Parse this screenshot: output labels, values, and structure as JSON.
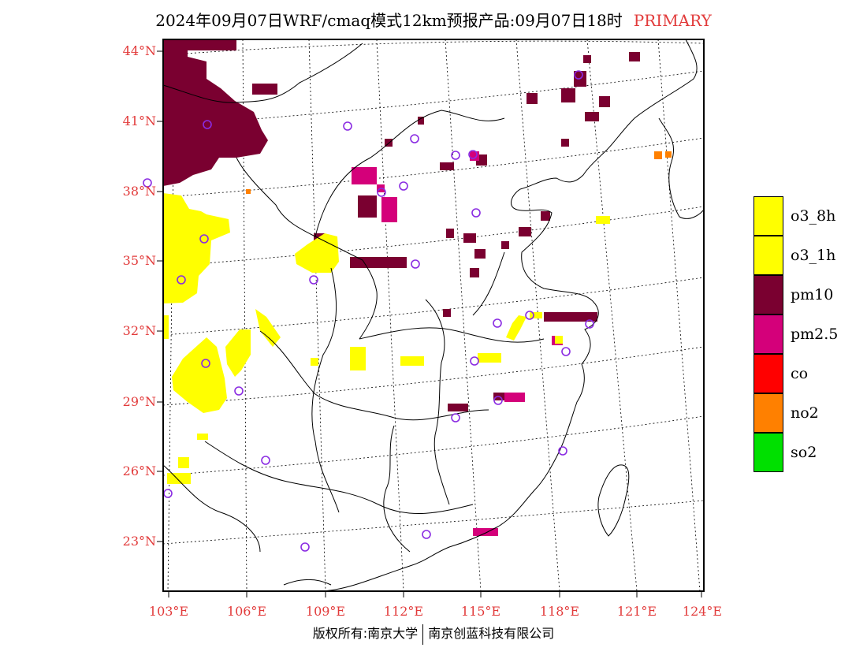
{
  "title": "2024年09月07日WRF/cmaq模式12km预报产品:09月07日18时",
  "title_tag": "PRIMARY",
  "lat_labels": [
    "44°N",
    "41°N",
    "38°N",
    "35°N",
    "32°N",
    "29°N",
    "26°N",
    "23°N"
  ],
  "lon_labels": [
    "103°E",
    "106°E",
    "109°E",
    "112°E",
    "115°E",
    "118°E",
    "121°E",
    "124°E"
  ],
  "legend": [
    {
      "label": "o3_8h",
      "color": "#ffff00"
    },
    {
      "label": "o3_1h",
      "color": "#ffff00"
    },
    {
      "label": "pm10",
      "color": "#7a0030"
    },
    {
      "label": "pm2.5",
      "color": "#d4007a"
    },
    {
      "label": "co",
      "color": "#ff0000"
    },
    {
      "label": "no2",
      "color": "#ff8000"
    },
    {
      "label": "so2",
      "color": "#00e000"
    }
  ],
  "copyright_left": "版权所有:南京大学",
  "copyright_right": "南京创蓝科技有限公司",
  "colors": {
    "station": "#8a2be2",
    "axis_label": "#e23b3b",
    "tag": "#e23b3b"
  }
}
